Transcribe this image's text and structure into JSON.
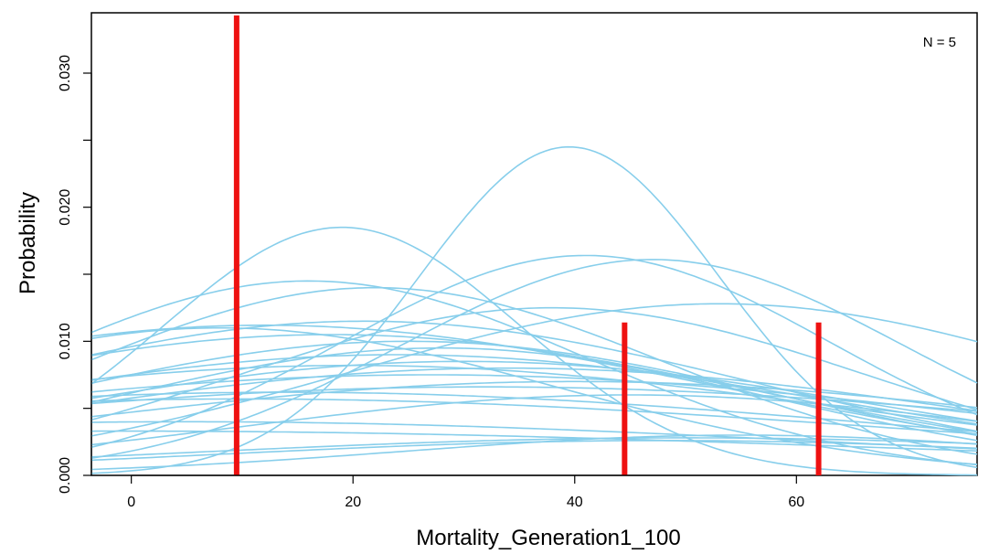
{
  "chart_data": {
    "type": "line",
    "title": "",
    "xlabel": "Mortality_Generation1_100",
    "ylabel": "Probability",
    "xlim": [
      -3.6,
      76.3
    ],
    "ylim": [
      0,
      0.0345
    ],
    "x_ticks": [
      0,
      20,
      40,
      60
    ],
    "x_tick_labels": [
      "0",
      "20",
      "40",
      "60"
    ],
    "y_ticks": [
      0.0,
      0.005,
      0.01,
      0.015,
      0.02,
      0.025,
      0.03
    ],
    "y_tick_labels": [
      "0.000",
      "",
      "0.010",
      "",
      "0.020",
      "",
      "0.030"
    ],
    "annotation": "N = 5",
    "grid": false,
    "density_color": "#87ceeb",
    "spike_color": "#ee1111",
    "spikes": [
      {
        "x": 9.5,
        "y": 0.0343
      },
      {
        "x": 44.5,
        "y": 0.0114
      },
      {
        "x": 62.0,
        "y": 0.0114
      }
    ],
    "density_curves": [
      {
        "mu": 39.5,
        "peak": 0.0245,
        "sigma": 13.5
      },
      {
        "mu": 19.0,
        "peak": 0.0185,
        "sigma": 16.0
      },
      {
        "mu": 41.0,
        "peak": 0.0164,
        "sigma": 22.0
      },
      {
        "mu": 47.0,
        "peak": 0.0161,
        "sigma": 22.5
      },
      {
        "mu": 16.0,
        "peak": 0.0145,
        "sigma": 25.0
      },
      {
        "mu": 22.0,
        "peak": 0.014,
        "sigma": 26.0
      },
      {
        "mu": 53.0,
        "peak": 0.0128,
        "sigma": 33.0
      },
      {
        "mu": 38.0,
        "peak": 0.0125,
        "sigma": 28.0
      },
      {
        "mu": 21.0,
        "peak": 0.0115,
        "sigma": 35.0
      },
      {
        "mu": 12.0,
        "peak": 0.0112,
        "sigma": 40.0
      },
      {
        "mu": 8.0,
        "peak": 0.011,
        "sigma": 30.0
      },
      {
        "mu": 18.0,
        "peak": 0.0105,
        "sigma": 38.0
      },
      {
        "mu": 25.0,
        "peak": 0.01,
        "sigma": 33.0
      },
      {
        "mu": 28.0,
        "peak": 0.0095,
        "sigma": 30.0
      },
      {
        "mu": 24.0,
        "peak": 0.009,
        "sigma": 40.0
      },
      {
        "mu": 30.0,
        "peak": 0.0085,
        "sigma": 38.0
      },
      {
        "mu": 20.0,
        "peak": 0.0082,
        "sigma": 45.0
      },
      {
        "mu": 34.0,
        "peak": 0.008,
        "sigma": 42.0
      },
      {
        "mu": 27.0,
        "peak": 0.0075,
        "sigma": 50.0
      },
      {
        "mu": 40.0,
        "peak": 0.007,
        "sigma": 45.0
      },
      {
        "mu": 32.0,
        "peak": 0.0066,
        "sigma": 55.0
      },
      {
        "mu": 14.0,
        "peak": 0.0062,
        "sigma": 55.0
      },
      {
        "mu": 45.0,
        "peak": 0.006,
        "sigma": 35.0
      },
      {
        "mu": 10.0,
        "peak": 0.0057,
        "sigma": 60.0
      },
      {
        "mu": 5.0,
        "peak": 0.004,
        "sigma": 60.0
      },
      {
        "mu": 50.0,
        "peak": 0.0028,
        "sigma": 45.0
      },
      {
        "mu": 0.0,
        "peak": 0.0033,
        "sigma": 70.0
      },
      {
        "mu": 55.0,
        "peak": 0.003,
        "sigma": 30.0
      },
      {
        "mu": 48.0,
        "peak": 0.0026,
        "sigma": 40.0
      }
    ]
  }
}
